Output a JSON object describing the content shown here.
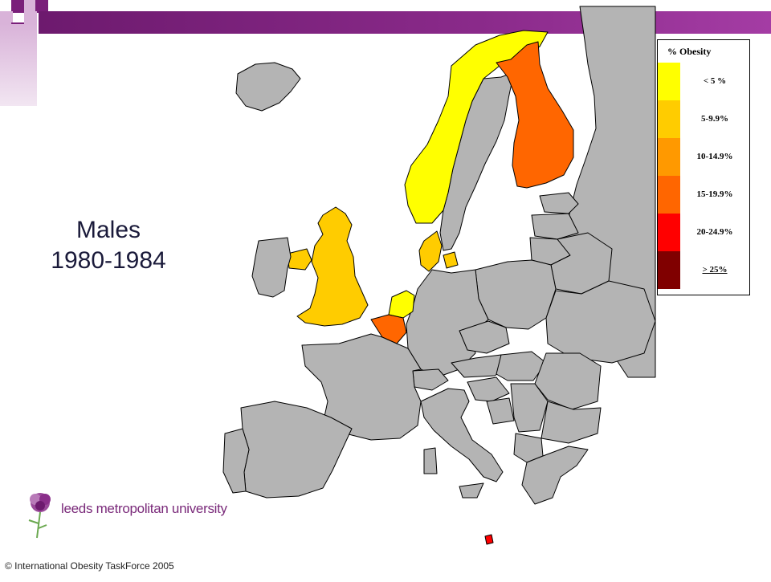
{
  "title": {
    "line1": "Males",
    "line2": "1980-1984"
  },
  "legend": {
    "title": "% Obesity",
    "items": [
      {
        "label": "< 5 %",
        "color": "#ffff00",
        "underline": false
      },
      {
        "label": "5-9.9%",
        "color": "#ffcc00",
        "underline": false
      },
      {
        "label": "10-14.9%",
        "color": "#ff9900",
        "underline": false
      },
      {
        "label": "15-19.9%",
        "color": "#ff6600",
        "underline": false
      },
      {
        "label": "20-24.9%",
        "color": "#ff0000",
        "underline": false
      },
      {
        "label": "> 25%",
        "color": "#800000",
        "underline": true
      }
    ]
  },
  "map": {
    "no_data_color": "#b4b4b4",
    "sea_color": "#ffffff",
    "countries": [
      {
        "name": "Norway",
        "category": "< 5 %"
      },
      {
        "name": "Netherlands",
        "category": "< 5 %"
      },
      {
        "name": "United Kingdom",
        "category": "5-9.9%"
      },
      {
        "name": "Denmark",
        "category": "5-9.9%"
      },
      {
        "name": "Ireland",
        "category": "5-9.9%"
      },
      {
        "name": "Finland",
        "category": "15-19.9%"
      },
      {
        "name": "Belgium",
        "category": "15-19.9%"
      }
    ]
  },
  "logo": {
    "text": "leeds metropolitan university"
  },
  "footer": {
    "copyright": "© International Obesity TaskForce 2005"
  },
  "colors": {
    "brand_purple": "#7a1f7a",
    "deco_light": "#d9b3d9"
  }
}
